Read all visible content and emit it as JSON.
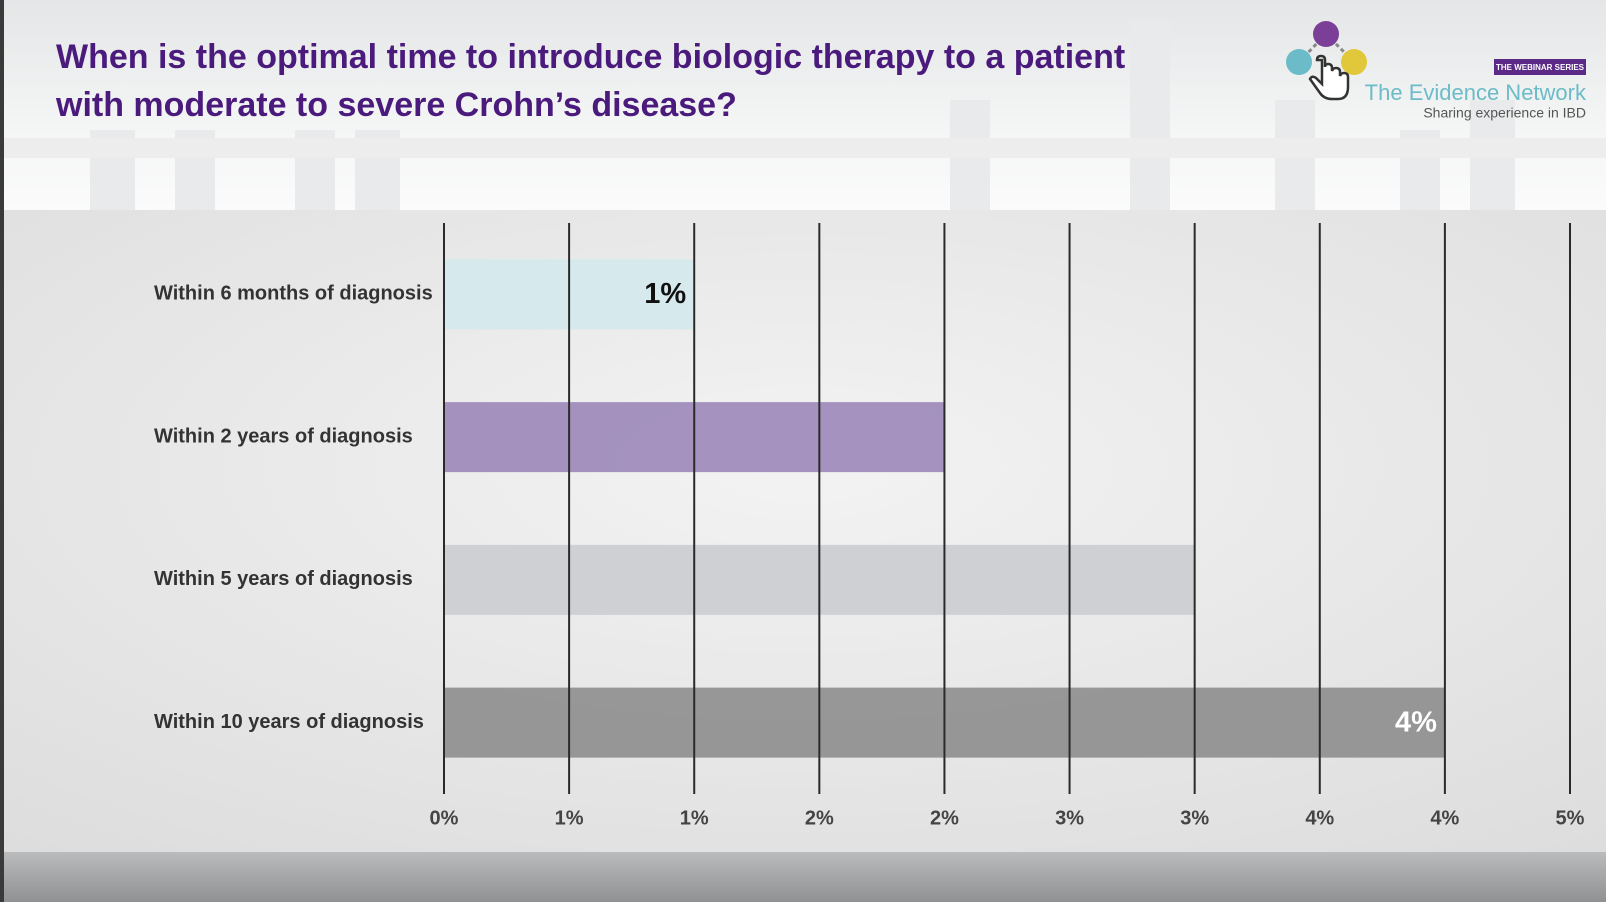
{
  "header": {
    "title_lines": [
      "When is the optimal time to introduce biologic therapy to a patient",
      "with moderate to severe Crohn’s disease?"
    ],
    "logo": {
      "badge": "THE WEBINAR SERIES",
      "name": "The Evidence Network",
      "tagline": "Sharing experience in IBD"
    }
  },
  "chart_data": {
    "type": "bar",
    "orientation": "horizontal",
    "categories": [
      "Within 6 months of diagnosis",
      "Within 2 years of diagnosis",
      "Within 5 years of diagnosis",
      "Within 10 years of diagnosis"
    ],
    "values": [
      1,
      2,
      3,
      4
    ],
    "value_labels": [
      "1%",
      null,
      null,
      "4%"
    ],
    "colors": [
      "#d3e8ec",
      "#9a84b6",
      "#c9ccd0",
      "#8b8b8b"
    ],
    "xlim": [
      0,
      4.5
    ],
    "xticks": [
      {
        "value": 0,
        "label": "0%"
      },
      {
        "value": 0.5,
        "label": "1%"
      },
      {
        "value": 1,
        "label": "1%"
      },
      {
        "value": 1.5,
        "label": "2%"
      },
      {
        "value": 2,
        "label": "2%"
      },
      {
        "value": 2.5,
        "label": "3%"
      },
      {
        "value": 3,
        "label": "3%"
      },
      {
        "value": 3.5,
        "label": "4%"
      },
      {
        "value": 4,
        "label": "4%"
      },
      {
        "value": 4.5,
        "label": "5%"
      }
    ],
    "grid": true
  }
}
